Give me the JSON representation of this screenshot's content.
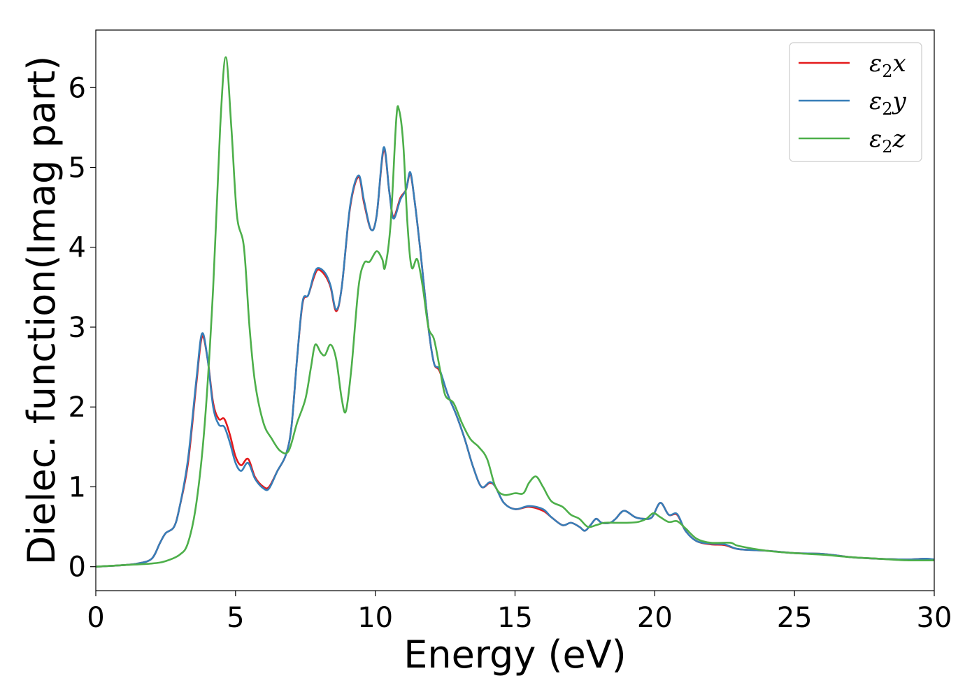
{
  "chart_data": {
    "type": "line",
    "xlabel": "Energy (eV)",
    "ylabel": "Dielec. function(Imag part)",
    "xlim": [
      0,
      30
    ],
    "ylim": [
      -0.3,
      6.72
    ],
    "xticks": [
      0,
      5,
      10,
      15,
      20,
      25,
      30
    ],
    "yticks": [
      0,
      1,
      2,
      3,
      4,
      5,
      6
    ],
    "grid": false,
    "legend_position": "top-right",
    "series": [
      {
        "name": "ε2x",
        "legend_main": "ε",
        "legend_sub": "2",
        "legend_suffix": "x",
        "color": "#e41a1c",
        "points": [
          [
            0,
            0
          ],
          [
            1,
            0.02
          ],
          [
            1.5,
            0.04
          ],
          [
            2,
            0.1
          ],
          [
            2.3,
            0.3
          ],
          [
            2.5,
            0.42
          ],
          [
            2.8,
            0.5
          ],
          [
            3,
            0.75
          ],
          [
            3.3,
            1.3
          ],
          [
            3.6,
            2.3
          ],
          [
            3.8,
            2.88
          ],
          [
            4,
            2.6
          ],
          [
            4.2,
            2.05
          ],
          [
            4.4,
            1.85
          ],
          [
            4.6,
            1.85
          ],
          [
            4.8,
            1.65
          ],
          [
            5,
            1.38
          ],
          [
            5.2,
            1.27
          ],
          [
            5.45,
            1.35
          ],
          [
            5.7,
            1.12
          ],
          [
            6,
            1.0
          ],
          [
            6.2,
            1.0
          ],
          [
            6.5,
            1.2
          ],
          [
            6.8,
            1.4
          ],
          [
            7,
            1.75
          ],
          [
            7.2,
            2.6
          ],
          [
            7.4,
            3.3
          ],
          [
            7.6,
            3.4
          ],
          [
            7.8,
            3.62
          ],
          [
            7.95,
            3.72
          ],
          [
            8.2,
            3.65
          ],
          [
            8.4,
            3.5
          ],
          [
            8.6,
            3.2
          ],
          [
            8.8,
            3.5
          ],
          [
            9.1,
            4.5
          ],
          [
            9.4,
            4.88
          ],
          [
            9.6,
            4.55
          ],
          [
            9.85,
            4.22
          ],
          [
            10.05,
            4.4
          ],
          [
            10.3,
            5.22
          ],
          [
            10.5,
            4.7
          ],
          [
            10.65,
            4.38
          ],
          [
            10.9,
            4.62
          ],
          [
            11.1,
            4.72
          ],
          [
            11.25,
            4.92
          ],
          [
            11.4,
            4.6
          ],
          [
            11.6,
            4.0
          ],
          [
            11.9,
            3.0
          ],
          [
            12.1,
            2.55
          ],
          [
            12.3,
            2.45
          ],
          [
            12.6,
            2.15
          ],
          [
            12.9,
            1.9
          ],
          [
            13.2,
            1.6
          ],
          [
            13.5,
            1.25
          ],
          [
            13.8,
            1.0
          ],
          [
            14.1,
            1.05
          ],
          [
            14.3,
            1.0
          ],
          [
            14.6,
            0.8
          ],
          [
            15,
            0.72
          ],
          [
            15.5,
            0.75
          ],
          [
            16,
            0.7
          ],
          [
            16.3,
            0.62
          ],
          [
            16.7,
            0.52
          ],
          [
            17,
            0.55
          ],
          [
            17.3,
            0.5
          ],
          [
            17.5,
            0.45
          ],
          [
            17.7,
            0.52
          ],
          [
            17.9,
            0.6
          ],
          [
            18.1,
            0.55
          ],
          [
            18.4,
            0.55
          ],
          [
            18.6,
            0.6
          ],
          [
            18.9,
            0.7
          ],
          [
            19.3,
            0.62
          ],
          [
            19.6,
            0.6
          ],
          [
            19.9,
            0.62
          ],
          [
            20.2,
            0.8
          ],
          [
            20.5,
            0.65
          ],
          [
            20.8,
            0.65
          ],
          [
            21.1,
            0.45
          ],
          [
            21.5,
            0.32
          ],
          [
            22,
            0.28
          ],
          [
            22.5,
            0.27
          ],
          [
            23,
            0.22
          ],
          [
            24,
            0.2
          ],
          [
            25,
            0.17
          ],
          [
            26,
            0.16
          ],
          [
            27,
            0.12
          ],
          [
            28,
            0.1
          ],
          [
            29,
            0.09
          ],
          [
            29.7,
            0.1
          ],
          [
            30,
            0.08
          ]
        ]
      },
      {
        "name": "ε2y",
        "legend_main": "ε",
        "legend_sub": "2",
        "legend_suffix": "y",
        "color": "#377eb8",
        "points": [
          [
            0,
            0
          ],
          [
            1,
            0.02
          ],
          [
            1.5,
            0.04
          ],
          [
            2,
            0.1
          ],
          [
            2.3,
            0.3
          ],
          [
            2.5,
            0.42
          ],
          [
            2.8,
            0.5
          ],
          [
            3,
            0.75
          ],
          [
            3.3,
            1.35
          ],
          [
            3.6,
            2.35
          ],
          [
            3.8,
            2.92
          ],
          [
            4,
            2.6
          ],
          [
            4.2,
            2.0
          ],
          [
            4.4,
            1.78
          ],
          [
            4.6,
            1.75
          ],
          [
            4.8,
            1.55
          ],
          [
            5,
            1.3
          ],
          [
            5.2,
            1.2
          ],
          [
            5.45,
            1.3
          ],
          [
            5.7,
            1.1
          ],
          [
            6,
            0.98
          ],
          [
            6.2,
            0.98
          ],
          [
            6.5,
            1.2
          ],
          [
            6.8,
            1.4
          ],
          [
            7,
            1.75
          ],
          [
            7.2,
            2.6
          ],
          [
            7.4,
            3.32
          ],
          [
            7.6,
            3.4
          ],
          [
            7.8,
            3.65
          ],
          [
            7.95,
            3.74
          ],
          [
            8.2,
            3.68
          ],
          [
            8.4,
            3.52
          ],
          [
            8.6,
            3.22
          ],
          [
            8.8,
            3.5
          ],
          [
            9.1,
            4.52
          ],
          [
            9.4,
            4.9
          ],
          [
            9.6,
            4.58
          ],
          [
            9.85,
            4.22
          ],
          [
            10.05,
            4.4
          ],
          [
            10.3,
            5.25
          ],
          [
            10.5,
            4.7
          ],
          [
            10.65,
            4.36
          ],
          [
            10.9,
            4.6
          ],
          [
            11.1,
            4.72
          ],
          [
            11.25,
            4.94
          ],
          [
            11.4,
            4.6
          ],
          [
            11.6,
            4.0
          ],
          [
            11.9,
            3.0
          ],
          [
            12.1,
            2.55
          ],
          [
            12.3,
            2.47
          ],
          [
            12.6,
            2.15
          ],
          [
            12.9,
            1.9
          ],
          [
            13.2,
            1.6
          ],
          [
            13.5,
            1.25
          ],
          [
            13.8,
            1.0
          ],
          [
            14.1,
            1.06
          ],
          [
            14.3,
            1.0
          ],
          [
            14.6,
            0.8
          ],
          [
            15,
            0.72
          ],
          [
            15.5,
            0.76
          ],
          [
            16,
            0.72
          ],
          [
            16.3,
            0.62
          ],
          [
            16.7,
            0.52
          ],
          [
            17,
            0.55
          ],
          [
            17.3,
            0.5
          ],
          [
            17.5,
            0.45
          ],
          [
            17.7,
            0.52
          ],
          [
            17.9,
            0.6
          ],
          [
            18.1,
            0.55
          ],
          [
            18.4,
            0.55
          ],
          [
            18.6,
            0.6
          ],
          [
            18.9,
            0.7
          ],
          [
            19.3,
            0.62
          ],
          [
            19.6,
            0.6
          ],
          [
            19.9,
            0.62
          ],
          [
            20.2,
            0.8
          ],
          [
            20.5,
            0.65
          ],
          [
            20.8,
            0.66
          ],
          [
            21.1,
            0.45
          ],
          [
            21.5,
            0.32
          ],
          [
            22,
            0.29
          ],
          [
            22.5,
            0.28
          ],
          [
            23,
            0.22
          ],
          [
            24,
            0.2
          ],
          [
            25,
            0.17
          ],
          [
            26,
            0.16
          ],
          [
            27,
            0.12
          ],
          [
            28,
            0.1
          ],
          [
            29,
            0.09
          ],
          [
            29.7,
            0.1
          ],
          [
            30,
            0.09
          ]
        ]
      },
      {
        "name": "ε2z",
        "legend_main": "ε",
        "legend_sub": "2",
        "legend_suffix": "z",
        "color": "#4daf4a",
        "points": [
          [
            0,
            0
          ],
          [
            1,
            0.02
          ],
          [
            2,
            0.04
          ],
          [
            2.5,
            0.07
          ],
          [
            3,
            0.15
          ],
          [
            3.3,
            0.3
          ],
          [
            3.6,
            0.8
          ],
          [
            3.9,
            1.8
          ],
          [
            4.2,
            3.5
          ],
          [
            4.45,
            5.5
          ],
          [
            4.65,
            6.38
          ],
          [
            4.85,
            5.5
          ],
          [
            5.05,
            4.4
          ],
          [
            5.3,
            4.0
          ],
          [
            5.5,
            3.0
          ],
          [
            5.7,
            2.3
          ],
          [
            6,
            1.8
          ],
          [
            6.3,
            1.6
          ],
          [
            6.6,
            1.45
          ],
          [
            6.9,
            1.45
          ],
          [
            7.2,
            1.8
          ],
          [
            7.5,
            2.1
          ],
          [
            7.7,
            2.5
          ],
          [
            7.85,
            2.78
          ],
          [
            8.05,
            2.68
          ],
          [
            8.2,
            2.65
          ],
          [
            8.4,
            2.78
          ],
          [
            8.6,
            2.6
          ],
          [
            8.8,
            2.1
          ],
          [
            8.95,
            1.95
          ],
          [
            9.15,
            2.5
          ],
          [
            9.4,
            3.5
          ],
          [
            9.6,
            3.8
          ],
          [
            9.8,
            3.82
          ],
          [
            10.05,
            3.95
          ],
          [
            10.25,
            3.85
          ],
          [
            10.35,
            3.75
          ],
          [
            10.55,
            4.3
          ],
          [
            10.75,
            5.6
          ],
          [
            10.85,
            5.72
          ],
          [
            11,
            5.3
          ],
          [
            11.15,
            4.3
          ],
          [
            11.3,
            3.75
          ],
          [
            11.5,
            3.85
          ],
          [
            11.7,
            3.5
          ],
          [
            11.9,
            3.0
          ],
          [
            12.1,
            2.85
          ],
          [
            12.3,
            2.5
          ],
          [
            12.5,
            2.15
          ],
          [
            12.8,
            2.05
          ],
          [
            13.1,
            1.8
          ],
          [
            13.4,
            1.6
          ],
          [
            13.7,
            1.5
          ],
          [
            14,
            1.35
          ],
          [
            14.3,
            1.0
          ],
          [
            14.6,
            0.9
          ],
          [
            15,
            0.92
          ],
          [
            15.3,
            0.92
          ],
          [
            15.5,
            1.05
          ],
          [
            15.75,
            1.13
          ],
          [
            16,
            1.0
          ],
          [
            16.3,
            0.82
          ],
          [
            16.7,
            0.75
          ],
          [
            17,
            0.65
          ],
          [
            17.3,
            0.6
          ],
          [
            17.6,
            0.5
          ],
          [
            17.9,
            0.52
          ],
          [
            18.2,
            0.55
          ],
          [
            18.6,
            0.55
          ],
          [
            19,
            0.55
          ],
          [
            19.4,
            0.56
          ],
          [
            19.7,
            0.6
          ],
          [
            19.95,
            0.67
          ],
          [
            20.2,
            0.62
          ],
          [
            20.5,
            0.56
          ],
          [
            20.8,
            0.57
          ],
          [
            21.1,
            0.48
          ],
          [
            21.5,
            0.35
          ],
          [
            22,
            0.3
          ],
          [
            22.7,
            0.3
          ],
          [
            23,
            0.26
          ],
          [
            24,
            0.2
          ],
          [
            25,
            0.17
          ],
          [
            26,
            0.15
          ],
          [
            27,
            0.12
          ],
          [
            28,
            0.1
          ],
          [
            29,
            0.08
          ],
          [
            30,
            0.08
          ]
        ]
      }
    ]
  }
}
